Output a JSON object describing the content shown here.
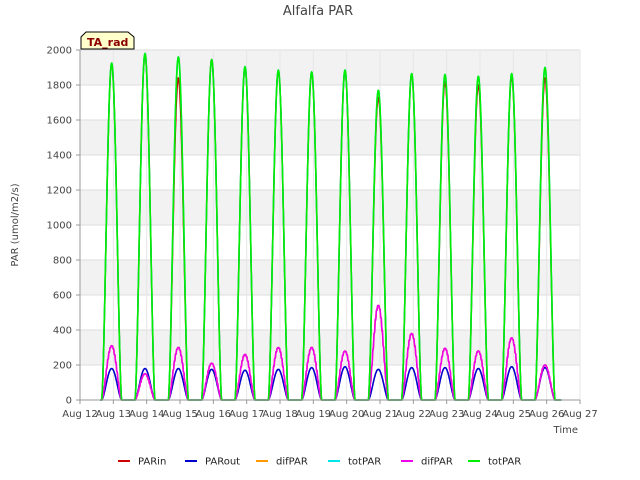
{
  "chart_data": {
    "type": "line",
    "title": "Alfalfa PAR",
    "xlabel": "Time",
    "ylabel": "PAR (umol/m2/s)",
    "badge": "TA_rad",
    "ylim": [
      0,
      2000
    ],
    "xlim": [
      12,
      27
    ],
    "yticks": [
      0,
      200,
      400,
      600,
      800,
      1000,
      1200,
      1400,
      1600,
      1800,
      2000
    ],
    "xticks": [
      12,
      13,
      14,
      15,
      16,
      17,
      18,
      19,
      20,
      21,
      22,
      23,
      24,
      25,
      26,
      27
    ],
    "xtick_labels": [
      "Aug 12",
      "Aug 13",
      "Aug 14",
      "Aug 15",
      "Aug 16",
      "Aug 17",
      "Aug 18",
      "Aug 19",
      "Aug 20",
      "Aug 21",
      "Aug 22",
      "Aug 23",
      "Aug 24",
      "Aug 25",
      "Aug 26",
      "Aug 27"
    ],
    "day_centers": [
      12.95,
      13.95,
      14.95,
      15.95,
      16.95,
      17.95,
      18.95,
      19.95,
      20.95,
      21.95,
      22.95,
      23.95,
      24.95,
      25.95
    ],
    "series": [
      {
        "name": "PARin",
        "color": "#cc0000",
        "peaks": [
          1920,
          1975,
          1840,
          1945,
          1900,
          1880,
          1870,
          1880,
          1730,
          1860,
          1820,
          1800,
          1850,
          1840
        ]
      },
      {
        "name": "PARout",
        "color": "#0000cc",
        "peaks": [
          180,
          180,
          180,
          175,
          170,
          175,
          185,
          190,
          175,
          185,
          185,
          180,
          190,
          185
        ]
      },
      {
        "name": "difPAR",
        "color": "#ff9900",
        "peaks": [
          310,
          150,
          300,
          210,
          260,
          300,
          300,
          280,
          540,
          380,
          295,
          280,
          355,
          200
        ]
      },
      {
        "name": "totPAR",
        "color": "#00e5e5",
        "peaks": [
          1925,
          1980,
          1960,
          1945,
          1905,
          1885,
          1875,
          1885,
          1770,
          1865,
          1860,
          1850,
          1865,
          1900
        ]
      },
      {
        "name": "difPAR",
        "color": "#ee00ee",
        "peaks": [
          310,
          150,
          300,
          210,
          260,
          300,
          300,
          280,
          540,
          380,
          295,
          280,
          355,
          200
        ]
      },
      {
        "name": "totPAR",
        "color": "#00ee00",
        "peaks": [
          1925,
          1980,
          1960,
          1945,
          1905,
          1885,
          1875,
          1885,
          1770,
          1865,
          1860,
          1850,
          1865,
          1900
        ]
      }
    ],
    "legend": [
      "PARin",
      "PARout",
      "difPAR",
      "totPAR",
      "difPAR",
      "totPAR"
    ],
    "legend_colors": [
      "#cc0000",
      "#0000cc",
      "#ff9900",
      "#00e5e5",
      "#ee00ee",
      "#00ee00"
    ]
  }
}
